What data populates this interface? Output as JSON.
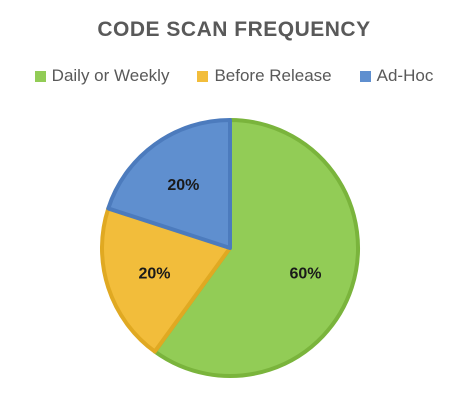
{
  "chart_data": {
    "type": "pie",
    "title": "CODE SCAN FREQUENCY",
    "categories": [
      "Daily or Weekly",
      "Before Release",
      "Ad-Hoc"
    ],
    "values": [
      60,
      20,
      20
    ],
    "labels": [
      "60%",
      "20%",
      "20%"
    ],
    "colors": [
      "#92cc56",
      "#f2bd3b",
      "#5f8fcf"
    ],
    "border_colors": [
      "#7ab43c",
      "#e0a922",
      "#4c7bbd"
    ],
    "legend_position": "top"
  }
}
